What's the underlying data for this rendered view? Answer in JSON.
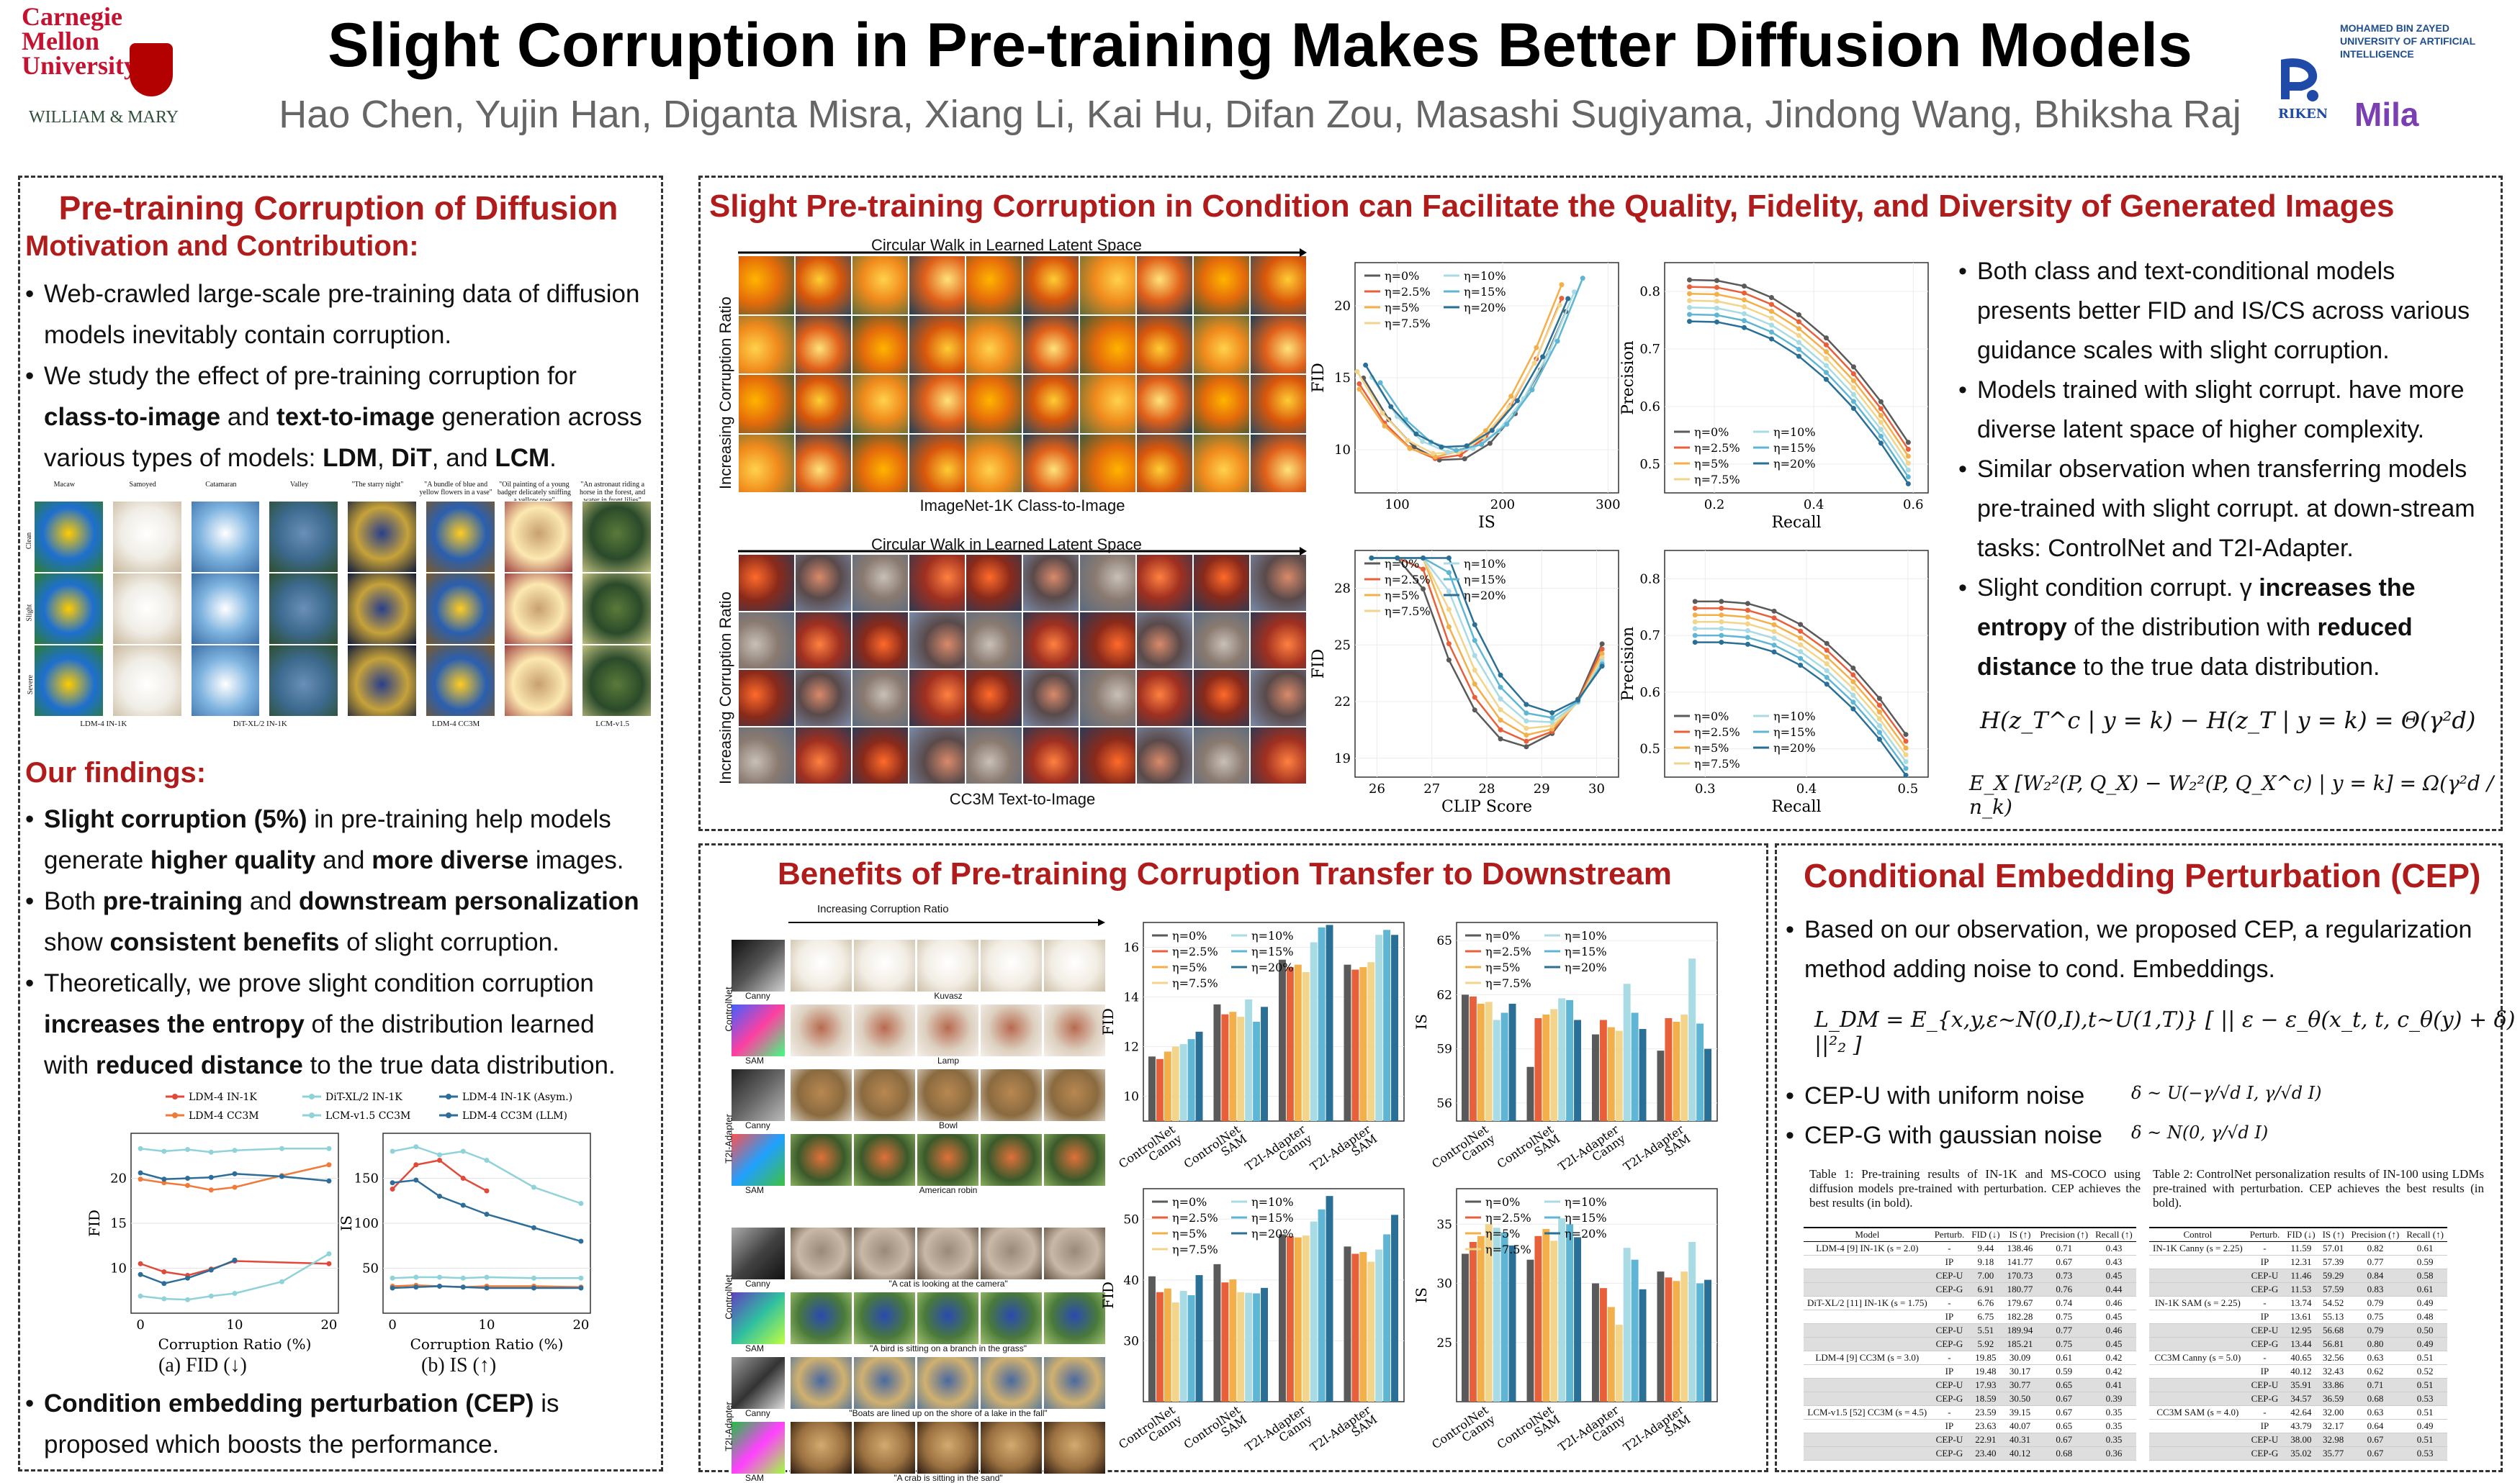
{
  "header": {
    "title": "Slight Corruption in Pre-training Makes Better Diffusion Models",
    "authors": "Hao Chen, Yujin Han, Diganta Misra, Xiang Li, Kai Hu, Difan Zou, Masashi Sugiyama, Jindong Wang, Bhiksha Raj",
    "logo_cmu": "Carnegie Mellon University",
    "logo_wm": "WILLIAM & MARY",
    "logo_mbz": "MOHAMED BIN ZAYED UNIVERSITY OF ARTIFICIAL INTELLIGENCE",
    "logo_riken": "RIKEN",
    "logo_mila": "Mila"
  },
  "left": {
    "title": "Pre-training Corruption of Diffusion",
    "motivation_title": "Motivation and Contribution:",
    "bullet1": "Web-crawled large-scale pre-training data of diffusion models inevitably contain corruption.",
    "bullet2_a": "We study the effect of pre-training corruption for ",
    "bullet2_b": "class-to-image",
    "bullet2_c": " and ",
    "bullet2_d": "text-to-image",
    "bullet2_e": " generation across various types of models: ",
    "bullet2_f": "LDM",
    "bullet2_g": ", ",
    "bullet2_h": "DiT",
    "bullet2_i": ", and ",
    "bullet2_j": "LCM",
    "bullet2_k": ".",
    "grid_cols": [
      "Macaw",
      "Samoyed",
      "Catamaran",
      "Valley",
      "\"The starry night\"",
      "\"A bundle of blue and yellow flowers in a vase\"",
      "\"Oil painting of a young badger delicately sniffing a yellow rose\"",
      "\"An astronaut riding a horse in the forest, and water in front lilies\""
    ],
    "grid_rows": [
      "Clean",
      "Slight",
      "Severe"
    ],
    "grid_footer": [
      "LDM-4 IN-1K",
      "DiT-XL/2 IN-1K",
      "LDM-4 CC3M",
      "LCM-v1.5"
    ],
    "findings_title": "Our findings:",
    "f1_a": "Slight corruption (5%)",
    "f1_b": " in pre-training help models generate ",
    "f1_c": "higher quality",
    "f1_d": " and ",
    "f1_e": "more diverse",
    "f1_f": " images.",
    "f2_a": "Both ",
    "f2_b": "pre-training",
    "f2_c": " and ",
    "f2_d": "downstream personalization",
    "f2_e": " show ",
    "f2_f": "consistent benefits",
    "f2_g": " of slight corruption.",
    "f3_a": "Theoretically, we prove slight condition corruption ",
    "f3_b": "increases the entropy",
    "f3_c": " of the distribution learned with ",
    "f3_d": "reduced distance",
    "f3_e": " to the true data distribution.",
    "f4_a": "Condition embedding perturbation (CEP)",
    "f4_b": " is proposed which boosts the performance.",
    "legend": [
      "LDM-4 IN-1K",
      "DiT-XL/2 IN-1K",
      "LDM-4 IN-1K (Asym.)",
      "LDM-4 CC3M",
      "LCM-v1.5 CC3M",
      "LDM-4 CC3M (LLM)"
    ],
    "cap_a": "(a) FID (↓)",
    "cap_b": "(b) IS (↑)",
    "x_label": "Corruption Ratio (%)",
    "y_fid": "FID",
    "y_is": "IS"
  },
  "middle_top": {
    "title": "Slight Pre-training Corruption in Condition can Facilitate the Quality, Fidelity, and Diversity of Generated Images",
    "walk_label": "Circular Walk in Learned Latent Space",
    "ratio_label": "Increasing Corruption Ratio",
    "caption1": "ImageNet-1K Class-to-Image",
    "caption2": "CC3M Text-to-Image",
    "legend": [
      "η=0%",
      "η=2.5%",
      "η=5%",
      "η=7.5%",
      "η=10%",
      "η=15%",
      "η=20%"
    ],
    "ax": {
      "fid": "FID",
      "is": "IS",
      "precision": "Precision",
      "recall": "Recall",
      "clip": "CLIP Score"
    },
    "b1": "Both class and text-conditional models presents better FID and IS/CS across various guidance scales with slight corruption.",
    "b2": "Models trained with slight corrupt. have more diverse latent space of higher complexity.",
    "b3": "Similar observation when transferring models pre-trained with slight corrupt. at down-stream tasks: ControlNet and T2I-Adapter.",
    "b4_a": "Slight condition corrupt. γ ",
    "b4_b": "increases the entropy",
    "b4_c": " of the distribution with ",
    "b4_d": "reduced distance",
    "b4_e": " to the true data distribution.",
    "eq1": "H(z_T^c | y = k) − H(z_T | y = k) = Θ(γ²d)",
    "eq2": "E_X [W₂²(P, Q_X) − W₂²(P, Q_X^c) | y = k] = Ω(γ²d / n_k)"
  },
  "bottom_mid": {
    "title": "Benefits of Pre-training Corruption Transfer to Downstream",
    "ratio_label": "Increasing Corruption Ratio",
    "side": [
      "ControlNet",
      "T2I-Adapter",
      "ControlNet",
      "T2I-Adapter"
    ],
    "cond": [
      "Canny",
      "SAM",
      "Canny",
      "SAM",
      "Canny",
      "SAM",
      "Canny",
      "SAM"
    ],
    "row_caps": [
      "Kuvasz",
      "Lamp",
      "Bowl",
      "American robin",
      "\"A cat is looking at the camera\"",
      "\"A bird is sitting on a branch in the grass\"",
      "\"Boats are lined up on the shore of a lake in the fall\"",
      "\"A crab is sitting in the sand\""
    ],
    "bar_cats": [
      "ControlNet Canny",
      "ControlNet SAM",
      "T2I-Adapter Canny",
      "T2I-Adapter SAM"
    ]
  },
  "cep": {
    "title": "Conditional Embedding Perturbation (CEP)",
    "b1": "Based on our observation, we proposed CEP, a regularization method adding noise to cond. Embeddings.",
    "eq": "L_DM = E_{x,y,ε~N(0,I),t~U(1,T)} [ || ε − ε_θ(x_t, t, c_θ(y) + δ) ||²₂ ]",
    "b2": "CEP-U with uniform noise",
    "b2_eq": "δ ~ U(−γ/√d I, γ/√d I)",
    "b3": "CEP-G with gaussian noise",
    "b3_eq": "δ ~ N(0, γ/√d I)",
    "table1_cap": "Table 1: Pre-training results of IN-1K and MS-COCO using diffusion models pre-trained with perturbation. CEP achieves the best results (in bold).",
    "table2_cap": "Table 2: ControlNet personalization results of IN-100 using LDMs pre-trained with perturbation. CEP achieves the best results (in bold).",
    "t1_head": [
      "Model",
      "Perturb.",
      "FID (↓)",
      "IS (↑)",
      "Precision (↑)",
      "Recall (↑)"
    ],
    "t1_rows": [
      [
        "LDM-4 [9] IN-1K (s = 2.0)",
        "-",
        "9.44",
        "138.46",
        "0.71",
        "0.43"
      ],
      [
        "",
        "IP",
        "9.18",
        "141.77",
        "0.67",
        "0.43"
      ],
      [
        "",
        "CEP-U",
        "7.00",
        "170.73",
        "0.73",
        "0.45"
      ],
      [
        "",
        "CEP-G",
        "6.91",
        "180.77",
        "0.76",
        "0.44"
      ],
      [
        "DiT-XL/2 [11] IN-1K (s = 1.75)",
        "-",
        "6.76",
        "179.67",
        "0.74",
        "0.46"
      ],
      [
        "",
        "IP",
        "6.75",
        "182.28",
        "0.75",
        "0.45"
      ],
      [
        "",
        "CEP-U",
        "5.51",
        "189.94",
        "0.77",
        "0.46"
      ],
      [
        "",
        "CEP-G",
        "5.92",
        "185.21",
        "0.75",
        "0.45"
      ],
      [
        "LDM-4 [9] CC3M (s = 3.0)",
        "-",
        "19.85",
        "30.09",
        "0.61",
        "0.42"
      ],
      [
        "",
        "IP",
        "19.48",
        "30.17",
        "0.59",
        "0.42"
      ],
      [
        "",
        "CEP-U",
        "17.93",
        "30.77",
        "0.65",
        "0.41"
      ],
      [
        "",
        "CEP-G",
        "18.59",
        "30.50",
        "0.67",
        "0.39"
      ],
      [
        "LCM-v1.5 [52] CC3M (s = 4.5)",
        "-",
        "23.59",
        "39.15",
        "0.67",
        "0.35"
      ],
      [
        "",
        "IP",
        "23.63",
        "40.07",
        "0.65",
        "0.35"
      ],
      [
        "",
        "CEP-U",
        "22.91",
        "40.31",
        "0.67",
        "0.35"
      ],
      [
        "",
        "CEP-G",
        "23.40",
        "40.12",
        "0.68",
        "0.36"
      ]
    ],
    "t2_head": [
      "Control",
      "Perturb.",
      "FID (↓)",
      "IS (↑)",
      "Precision (↑)",
      "Recall (↑)"
    ],
    "t2_rows": [
      [
        "IN-1K Canny (s = 2.25)",
        "-",
        "11.59",
        "57.01",
        "0.82",
        "0.61"
      ],
      [
        "",
        "IP",
        "12.31",
        "57.39",
        "0.77",
        "0.59"
      ],
      [
        "",
        "CEP-U",
        "11.46",
        "59.29",
        "0.84",
        "0.58"
      ],
      [
        "",
        "CEP-G",
        "11.53",
        "57.59",
        "0.83",
        "0.61"
      ],
      [
        "IN-1K SAM (s = 2.25)",
        "-",
        "13.74",
        "54.52",
        "0.79",
        "0.49"
      ],
      [
        "",
        "IP",
        "13.61",
        "55.13",
        "0.75",
        "0.48"
      ],
      [
        "",
        "CEP-U",
        "12.95",
        "56.68",
        "0.79",
        "0.50"
      ],
      [
        "",
        "CEP-G",
        "13.44",
        "56.81",
        "0.80",
        "0.49"
      ],
      [
        "CC3M Canny (s = 5.0)",
        "-",
        "40.65",
        "32.56",
        "0.63",
        "0.51"
      ],
      [
        "",
        "IP",
        "40.12",
        "32.43",
        "0.62",
        "0.52"
      ],
      [
        "",
        "CEP-U",
        "35.91",
        "33.86",
        "0.71",
        "0.51"
      ],
      [
        "",
        "CEP-G",
        "34.57",
        "36.59",
        "0.68",
        "0.53"
      ],
      [
        "CC3M SAM (s = 4.0)",
        "-",
        "42.64",
        "32.00",
        "0.63",
        "0.51"
      ],
      [
        "",
        "IP",
        "43.79",
        "32.17",
        "0.64",
        "0.49"
      ],
      [
        "",
        "CEP-U",
        "38.00",
        "32.98",
        "0.67",
        "0.51"
      ],
      [
        "",
        "CEP-G",
        "35.02",
        "35.77",
        "0.67",
        "0.53"
      ]
    ]
  },
  "colors": {
    "red_title": "#b01c1c",
    "series": [
      "#595959",
      "#e8703f",
      "#f3c66a",
      "#f0d98e",
      "#a8d8e0",
      "#62b4cf",
      "#2a6f95"
    ]
  },
  "chart_data": [
    {
      "type": "line",
      "title": "",
      "xlabel": "Corruption Ratio (%)",
      "ylabel": "FID",
      "x": [
        0,
        2.5,
        5,
        7.5,
        10,
        15,
        20
      ],
      "ylim": [
        5,
        25
      ],
      "series": [
        {
          "name": "LDM-4 IN-1K",
          "values": [
            10.5,
            9.6,
            9.2,
            9.9,
            10.8,
            null,
            10.5
          ]
        },
        {
          "name": "LDM-4 CC3M",
          "values": [
            19.9,
            19.5,
            19.2,
            18.7,
            19.0,
            20.3,
            21.5
          ]
        },
        {
          "name": "DiT-XL/2 IN-1K",
          "values": [
            6.9,
            6.6,
            6.5,
            6.9,
            7.2,
            8.5,
            11.6
          ]
        },
        {
          "name": "LCM-v1.5 CC3M",
          "values": [
            23.3,
            23.0,
            23.2,
            22.9,
            23.1,
            23.3,
            23.3
          ]
        },
        {
          "name": "LDM-4 IN-1K (Asym.)",
          "values": [
            9.3,
            8.3,
            8.9,
            9.8,
            10.9,
            null,
            null
          ]
        },
        {
          "name": "LDM-4 CC3M (LLM)",
          "values": [
            20.6,
            19.9,
            20.0,
            20.1,
            20.5,
            20.2,
            19.7
          ]
        }
      ]
    },
    {
      "type": "line",
      "title": "",
      "xlabel": "Corruption Ratio (%)",
      "ylabel": "IS",
      "x": [
        0,
        2.5,
        5,
        7.5,
        10,
        15,
        20
      ],
      "ylim": [
        0,
        200
      ],
      "series": [
        {
          "name": "LDM-4 IN-1K",
          "values": [
            138,
            165,
            170,
            150,
            136,
            null,
            null
          ]
        },
        {
          "name": "DiT-XL/2 IN-1K",
          "values": [
            180,
            185,
            176,
            180,
            170,
            140,
            122
          ]
        },
        {
          "name": "LDM-4 IN-1K (Asym.)",
          "values": [
            145,
            148,
            130,
            120,
            110,
            95,
            80
          ]
        },
        {
          "name": "LDM-4 CC3M",
          "values": [
            30,
            31,
            30,
            29,
            30,
            30,
            29
          ]
        },
        {
          "name": "LCM-v1.5 CC3M",
          "values": [
            39,
            40,
            40,
            39,
            40,
            39,
            39
          ]
        },
        {
          "name": "LDM-4 CC3M (LLM)",
          "values": [
            28,
            29,
            30,
            29,
            28,
            28,
            28
          ]
        }
      ]
    },
    {
      "type": "bar",
      "ylabel": "FID",
      "categories": [
        "ControlNet Canny",
        "ControlNet SAM",
        "T2I-Adapter Canny",
        "T2I-Adapter SAM"
      ],
      "ylim": [
        9,
        17
      ],
      "series": [
        {
          "name": "η=0%",
          "values": [
            11.6,
            13.7,
            15.5,
            15.3
          ]
        },
        {
          "name": "η=2.5%",
          "values": [
            11.5,
            13.3,
            15.2,
            15.1
          ]
        },
        {
          "name": "η=5%",
          "values": [
            11.8,
            13.4,
            15.3,
            15.2
          ]
        },
        {
          "name": "η=7.5%",
          "values": [
            12.0,
            13.2,
            15.0,
            15.4
          ]
        },
        {
          "name": "η=10%",
          "values": [
            12.1,
            13.9,
            16.2,
            16.5
          ]
        },
        {
          "name": "η=15%",
          "values": [
            12.3,
            13.0,
            16.8,
            16.7
          ]
        },
        {
          "name": "η=20%",
          "values": [
            12.6,
            13.6,
            16.9,
            16.5
          ]
        }
      ]
    },
    {
      "type": "bar",
      "ylabel": "IS",
      "categories": [
        "ControlNet Canny",
        "ControlNet SAM",
        "T2I-Adapter Canny",
        "T2I-Adapter SAM"
      ],
      "ylim": [
        55,
        66
      ],
      "series": [
        {
          "name": "η=0%",
          "values": [
            62.0,
            58.0,
            59.8,
            58.9
          ]
        },
        {
          "name": "η=2.5%",
          "values": [
            61.9,
            60.7,
            60.6,
            60.7
          ]
        },
        {
          "name": "η=5%",
          "values": [
            61.5,
            60.9,
            60.2,
            60.5
          ]
        },
        {
          "name": "η=7.5%",
          "values": [
            61.6,
            61.2,
            60.0,
            60.9
          ]
        },
        {
          "name": "η=10%",
          "values": [
            60.6,
            61.8,
            62.6,
            64.0
          ]
        },
        {
          "name": "η=15%",
          "values": [
            61.0,
            61.7,
            61.0,
            60.4
          ]
        },
        {
          "name": "η=20%",
          "values": [
            61.5,
            60.6,
            60.1,
            59.0
          ]
        }
      ]
    },
    {
      "type": "bar",
      "ylabel": "FID",
      "categories": [
        "ControlNet Canny",
        "ControlNet SAM",
        "T2I-Adapter Canny",
        "T2I-Adapter SAM"
      ],
      "ylim": [
        20,
        55
      ],
      "series": [
        {
          "name": "η=0%",
          "values": [
            40.6,
            42.6,
            47.5,
            45.5
          ]
        },
        {
          "name": "η=2.5%",
          "values": [
            38.0,
            39.6,
            47.2,
            44.3
          ]
        },
        {
          "name": "η=5%",
          "values": [
            38.6,
            40.1,
            47.0,
            44.6
          ]
        },
        {
          "name": "η=7.5%",
          "values": [
            36.3,
            38.0,
            47.3,
            43.0
          ]
        },
        {
          "name": "η=10%",
          "values": [
            38.2,
            37.9,
            49.6,
            45.0
          ]
        },
        {
          "name": "η=15%",
          "values": [
            37.5,
            37.8,
            51.6,
            47.5
          ]
        },
        {
          "name": "η=20%",
          "values": [
            40.8,
            38.7,
            53.8,
            50.7
          ]
        }
      ]
    },
    {
      "type": "bar",
      "ylabel": "IS",
      "categories": [
        "ControlNet Canny",
        "ControlNet SAM",
        "T2I-Adapter Canny",
        "T2I-Adapter SAM"
      ],
      "ylim": [
        20,
        38
      ],
      "series": [
        {
          "name": "η=0%",
          "values": [
            32.5,
            32.0,
            30.0,
            31.0
          ]
        },
        {
          "name": "η=2.5%",
          "values": [
            33.5,
            34.0,
            29.6,
            30.5
          ]
        },
        {
          "name": "η=5%",
          "values": [
            34.0,
            34.6,
            28.0,
            30.2
          ]
        },
        {
          "name": "η=7.5%",
          "values": [
            35.0,
            33.6,
            26.5,
            31.0
          ]
        },
        {
          "name": "η=10%",
          "values": [
            34.7,
            35.5,
            33.0,
            33.5
          ]
        },
        {
          "name": "η=15%",
          "values": [
            34.3,
            35.0,
            32.0,
            30.0
          ]
        },
        {
          "name": "η=20%",
          "values": [
            33.2,
            33.9,
            29.5,
            30.3
          ]
        }
      ]
    }
  ]
}
